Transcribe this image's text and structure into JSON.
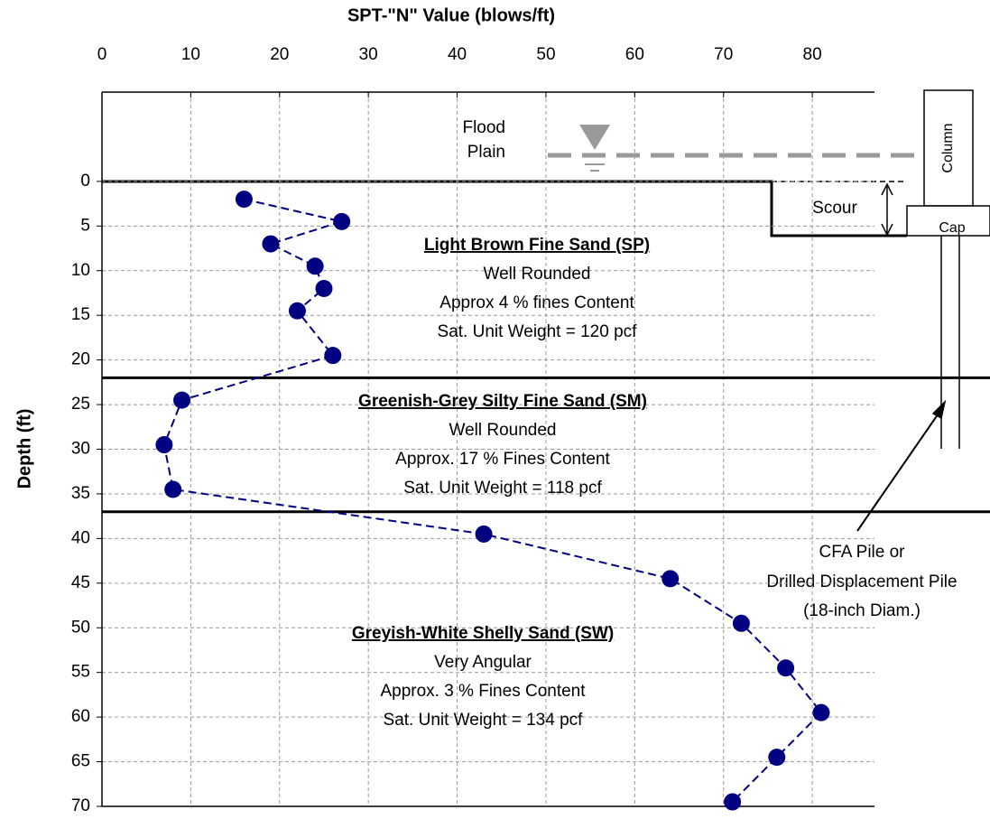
{
  "chart_data": {
    "type": "line",
    "x_label": "SPT-\"N\" Value (blows/ft)",
    "y_label": "Depth (ft)",
    "xlim": [
      0,
      87
    ],
    "xticks": [
      0,
      10,
      20,
      30,
      40,
      50,
      60,
      70,
      80
    ],
    "ylim": [
      -10,
      70
    ],
    "yticks": [
      0,
      5,
      10,
      15,
      20,
      25,
      30,
      35,
      40,
      45,
      50,
      55,
      60,
      65,
      70
    ],
    "y_inverted": true,
    "grid": true,
    "series": [
      {
        "color": "#000080",
        "x": [
          16,
          27,
          19,
          24,
          25,
          22,
          26,
          9,
          7,
          8,
          43,
          64,
          72,
          77,
          81,
          76,
          71
        ],
        "values": [
          2,
          4.5,
          7,
          9.5,
          12,
          14.5,
          19.5,
          24.5,
          29.5,
          34.5,
          39.5,
          44.5,
          49.5,
          54.5,
          59.5,
          64.5,
          69.5
        ]
      }
    ],
    "layer_boundaries": [
      22,
      37
    ],
    "layers": [
      {
        "title": "Light Brown Fine Sand (SP)",
        "lines": [
          "Well Rounded",
          "Approx 4 % fines Content",
          "Sat. Unit Weight = 120 pcf"
        ]
      },
      {
        "title": "Greenish-Grey Silty Fine Sand (SM)",
        "lines": [
          "Well Rounded",
          "Approx. 17 % Fines Content",
          "Sat. Unit Weight = 118 pcf"
        ]
      },
      {
        "title": "Greyish-White Shelly Sand (SW)",
        "lines": [
          "Very Angular",
          "Approx. 3 % Fines Content",
          "Sat. Unit Weight = 134 pcf"
        ]
      }
    ],
    "flood_label": [
      "Flood",
      "Plain"
    ],
    "scour_label": "Scour",
    "column_label": "Column",
    "cap_label": "Cap",
    "pile_label": [
      "CFA Pile or",
      "Drilled Displacement Pile",
      "(18-inch Diam.)"
    ]
  }
}
